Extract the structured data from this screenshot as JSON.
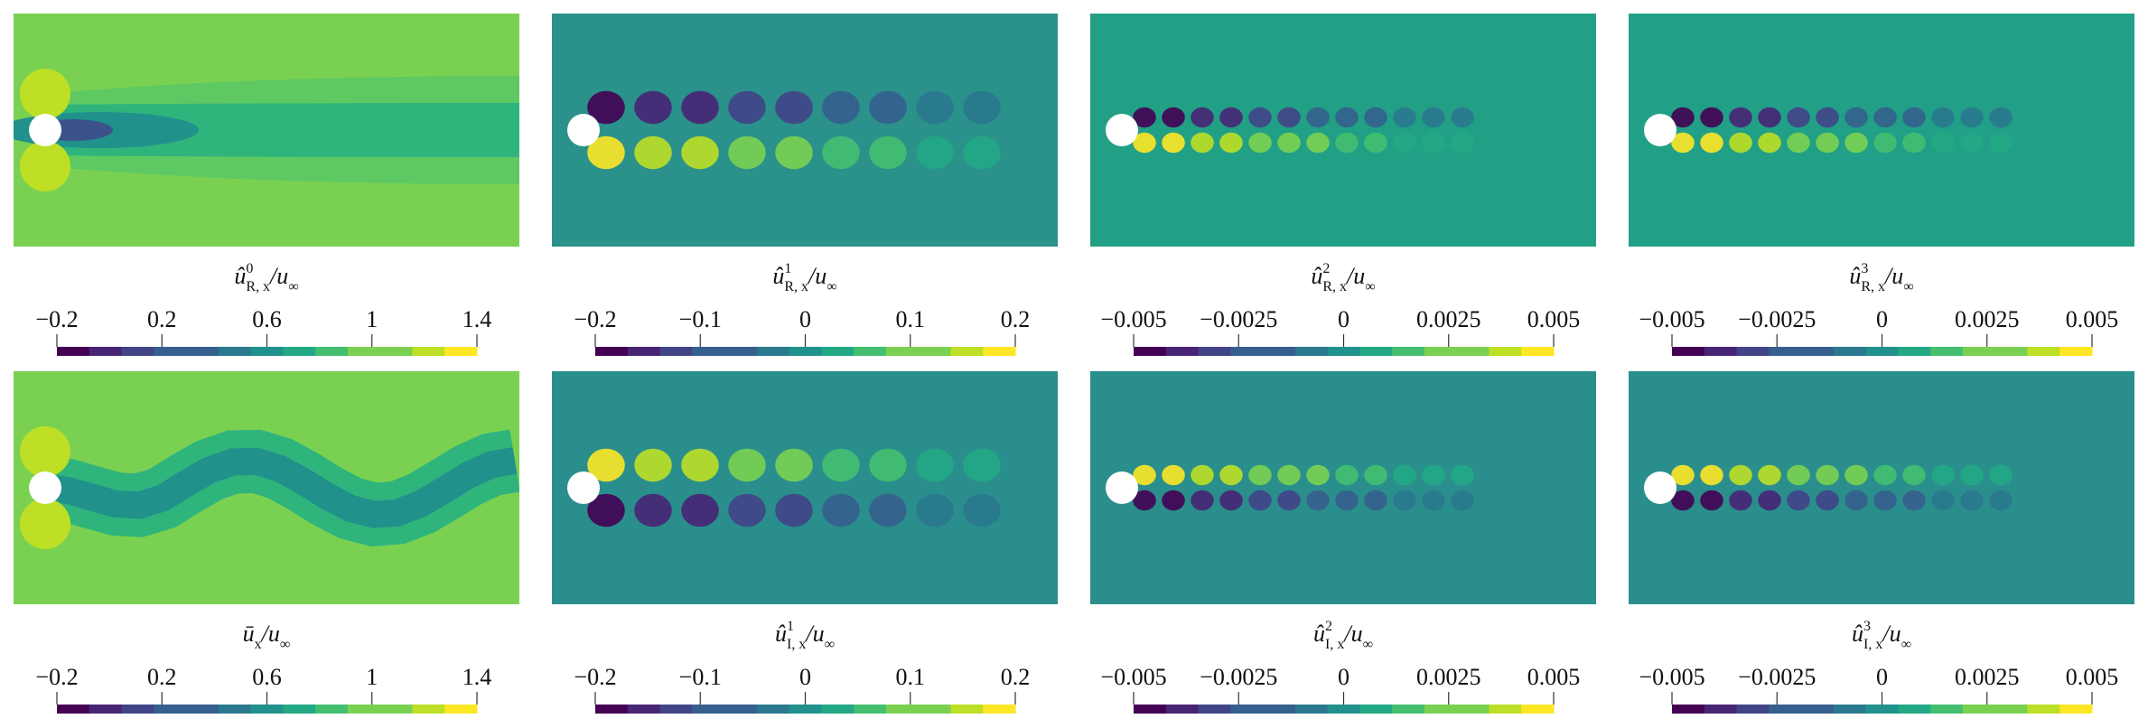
{
  "chart_data": [
    {
      "type": "contour",
      "color": "#7ad151",
      "colormap": "viridis",
      "clim": [
        -0.2,
        1.4
      ],
      "title": {
        "symbol": "û",
        "sup": "0",
        "sub": "R, x",
        "denom": "/u",
        "denom_sub": "∞"
      },
      "ticks": [
        {
          "value": -0.2,
          "label": "−0.2"
        },
        0.2,
        0.6,
        1,
        1.4
      ]
    },
    {
      "type": "contour",
      "color": "#2a918b",
      "colormap": "viridis",
      "clim": [
        -0.2,
        0.2
      ],
      "title": {
        "symbol": "û",
        "sup": "1",
        "sub": "R, x",
        "denom": "/u",
        "denom_sub": "∞"
      },
      "ticks": [
        {
          "value": -0.2,
          "label": "−0.2"
        },
        {
          "value": -0.1,
          "label": "−0.1"
        },
        0,
        0.1,
        0.2
      ]
    },
    {
      "type": "contour",
      "color": "#22a085",
      "colormap": "viridis",
      "clim": [
        -0.005,
        0.005
      ],
      "title": {
        "symbol": "û",
        "sup": "2",
        "sub": "R, x",
        "denom": "/u",
        "denom_sub": "∞"
      },
      "ticks": [
        {
          "value": -0.005,
          "label": "−0.005"
        },
        {
          "value": -0.0025,
          "label": "−0.0025"
        },
        0,
        0.0025,
        0.005
      ]
    },
    {
      "type": "contour",
      "color": "#21a087",
      "colormap": "viridis",
      "clim": [
        -0.005,
        0.005
      ],
      "title": {
        "symbol": "û",
        "sup": "3",
        "sub": "R, x",
        "denom": "/u",
        "denom_sub": "∞"
      },
      "ticks": [
        {
          "value": -0.005,
          "label": "−0.005"
        },
        {
          "value": -0.0025,
          "label": "−0.0025"
        },
        0,
        0.0025,
        0.005
      ]
    },
    {
      "type": "contour",
      "color": "#7ad151",
      "colormap": "viridis",
      "clim": [
        -0.2,
        1.4
      ],
      "title": {
        "symbol": "ū",
        "sub": "x",
        "denom": "/u",
        "denom_sub": "∞"
      },
      "ticks": [
        {
          "value": -0.2,
          "label": "−0.2"
        },
        0.2,
        0.6,
        1,
        1.4
      ]
    },
    {
      "type": "contour",
      "color": "#2a8f8c",
      "colormap": "viridis",
      "clim": [
        -0.2,
        0.2
      ],
      "title": {
        "symbol": "û",
        "sup": "1",
        "sub": "I, x",
        "denom": "/u",
        "denom_sub": "∞"
      },
      "ticks": [
        {
          "value": -0.2,
          "label": "−0.2"
        },
        {
          "value": -0.1,
          "label": "−0.1"
        },
        0,
        0.1,
        0.2
      ]
    },
    {
      "type": "contour",
      "color": "#2a8f8c",
      "colormap": "viridis",
      "clim": [
        -0.005,
        0.005
      ],
      "title": {
        "symbol": "û",
        "sup": "2",
        "sub": "I, x",
        "denom": "/u",
        "denom_sub": "∞"
      },
      "ticks": [
        {
          "value": -0.005,
          "label": "−0.005"
        },
        {
          "value": -0.0025,
          "label": "−0.0025"
        },
        0,
        0.0025,
        0.005
      ]
    },
    {
      "type": "contour",
      "color": "#2a8f8c",
      "colormap": "viridis",
      "clim": [
        -0.005,
        0.005
      ],
      "title": {
        "symbol": "û",
        "sup": "3",
        "sub": "I, x",
        "denom": "/u",
        "denom_sub": "∞"
      },
      "ticks": [
        {
          "value": -0.005,
          "label": "−0.005"
        },
        {
          "value": -0.0025,
          "label": "−0.0025"
        },
        0,
        0.0025,
        0.005
      ]
    }
  ]
}
